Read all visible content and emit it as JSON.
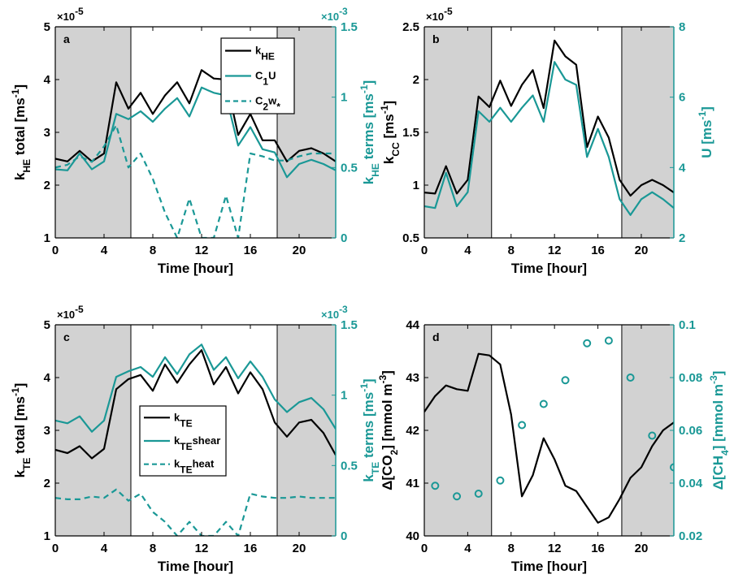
{
  "colors": {
    "black": "#000000",
    "teal": "#1a9896",
    "night": "#d2d2d2"
  },
  "panels": [
    {
      "id": "a",
      "label": "a",
      "xlabel": "Time [hour]",
      "xticks": [
        "0",
        "4",
        "8",
        "12",
        "16",
        "20"
      ],
      "left_axis": {
        "label": [
          "k",
          "HE",
          " total [ms",
          "-1",
          "]"
        ],
        "ticks": [
          "1",
          "2",
          "3",
          "4",
          "5"
        ],
        "multiplier": [
          "×10",
          "-5"
        ]
      },
      "right_axis": {
        "label": [
          "k",
          "HE",
          " terms [ms",
          "-1",
          "]"
        ],
        "ticks": [
          "0",
          "0.5",
          "1",
          "1.5"
        ],
        "multiplier": [
          "×10",
          "-3"
        ]
      },
      "legend": [
        {
          "parts": [
            "k",
            "HE"
          ],
          "style": "black-solid"
        },
        {
          "parts": [
            "C",
            "1",
            "U"
          ],
          "style": "teal-solid"
        },
        {
          "parts": [
            "C",
            "2",
            "w",
            "*"
          ],
          "style": "teal-dashed"
        }
      ]
    },
    {
      "id": "b",
      "label": "b",
      "xlabel": "Time [hour]",
      "xticks": [
        "0",
        "4",
        "8",
        "12",
        "16",
        "20"
      ],
      "left_axis": {
        "label": [
          "k",
          "CC",
          " [ms",
          "-1",
          "]"
        ],
        "ticks": [
          "0.5",
          "1",
          "1.5",
          "2",
          "2.5"
        ],
        "multiplier": [
          "×10",
          "-5"
        ]
      },
      "right_axis": {
        "label": [
          "U [ms",
          "-1",
          "]"
        ],
        "ticks": [
          "2",
          "4",
          "6",
          "8"
        ],
        "multiplier": null
      },
      "legend": []
    },
    {
      "id": "c",
      "label": "c",
      "xlabel": "Time [hour]",
      "xticks": [
        "0",
        "4",
        "8",
        "12",
        "16",
        "20"
      ],
      "left_axis": {
        "label": [
          "k",
          "TE",
          " total [ms",
          "-1",
          "]"
        ],
        "ticks": [
          "1",
          "2",
          "3",
          "4",
          "5"
        ],
        "multiplier": [
          "×10",
          "-5"
        ]
      },
      "right_axis": {
        "label": [
          "k",
          "TE",
          " terms [ms",
          "-1",
          "]"
        ],
        "ticks": [
          "0",
          "0.5",
          "1",
          "1.5"
        ],
        "multiplier": [
          "×10",
          "-3"
        ]
      },
      "legend": [
        {
          "parts": [
            "k",
            "TE"
          ],
          "style": "black-solid"
        },
        {
          "parts": [
            "k",
            "TE",
            "shear"
          ],
          "style": "teal-solid"
        },
        {
          "parts": [
            "k",
            "TE",
            "heat"
          ],
          "style": "teal-dashed"
        }
      ]
    },
    {
      "id": "d",
      "label": "d",
      "xlabel": "Time [hour]",
      "xticks": [
        "0",
        "4",
        "8",
        "12",
        "16",
        "20"
      ],
      "left_axis": {
        "label": [
          "Δ[CO",
          "2",
          "]  [mmol m",
          "-3",
          "]"
        ],
        "ticks": [
          "40",
          "41",
          "42",
          "43",
          "44"
        ],
        "multiplier": null
      },
      "right_axis": {
        "label": [
          "Δ[CH",
          "4",
          "]  [mmol m",
          "-3",
          "]"
        ],
        "ticks": [
          "0.02",
          "0.04",
          "0.06",
          "0.08",
          "0.1"
        ],
        "multiplier": null
      },
      "legend": []
    }
  ],
  "chart_data": [
    {
      "panel": "a",
      "type": "line",
      "xlabel": "Time [hour]",
      "xlim": [
        0,
        23
      ],
      "shaded_intervals": [
        [
          0,
          6.2
        ],
        [
          18.2,
          23
        ]
      ],
      "left_ylabel": "kHE total [ms-1]",
      "left_ylim": [
        1,
        5
      ],
      "left_unit_multiplier": "1e-5",
      "right_ylabel": "kHE terms [ms-1]",
      "right_ylim": [
        0,
        1.5
      ],
      "right_unit_multiplier": "1e-3",
      "x": [
        0,
        1,
        2,
        3,
        4,
        5,
        6,
        7,
        8,
        9,
        10,
        11,
        12,
        13,
        14,
        15,
        16,
        17,
        18,
        19,
        20,
        21,
        22,
        23
      ],
      "series": [
        {
          "name": "kHE",
          "axis": "left",
          "style": "black-solid",
          "values": [
            2.5,
            2.45,
            2.65,
            2.45,
            2.6,
            3.95,
            3.45,
            3.75,
            3.35,
            3.7,
            3.95,
            3.55,
            4.18,
            4.02,
            4.0,
            2.95,
            3.35,
            2.85,
            2.85,
            2.45,
            2.65,
            2.7,
            2.6,
            2.45
          ]
        },
        {
          "name": "C1U",
          "axis": "left",
          "style": "teal-solid",
          "values": [
            2.3,
            2.28,
            2.6,
            2.3,
            2.45,
            3.35,
            3.25,
            3.4,
            3.2,
            3.45,
            3.65,
            3.3,
            3.85,
            3.75,
            3.7,
            2.75,
            3.1,
            2.68,
            2.62,
            2.15,
            2.4,
            2.48,
            2.4,
            2.28
          ]
        },
        {
          "name": "C2w*",
          "axis": "right",
          "style": "teal-dashed",
          "values": [
            0.5,
            0.52,
            0.58,
            0.54,
            0.65,
            0.8,
            0.5,
            0.6,
            0.42,
            0.18,
            0.0,
            0.28,
            0.0,
            0.0,
            0.3,
            0.0,
            0.6,
            0.58,
            0.55,
            0.55,
            0.58,
            0.6,
            0.6,
            0.6
          ]
        }
      ]
    },
    {
      "panel": "b",
      "type": "line",
      "xlabel": "Time [hour]",
      "xlim": [
        0,
        23
      ],
      "shaded_intervals": [
        [
          0,
          6.2
        ],
        [
          18.2,
          23
        ]
      ],
      "left_ylabel": "kCC [ms-1]",
      "left_ylim": [
        0.5,
        2.5
      ],
      "left_unit_multiplier": "1e-5",
      "right_ylabel": "U [ms-1]",
      "right_ylim": [
        2,
        8
      ],
      "x": [
        0,
        1,
        2,
        3,
        4,
        5,
        6,
        7,
        8,
        9,
        10,
        11,
        12,
        13,
        14,
        15,
        16,
        17,
        18,
        19,
        20,
        21,
        22,
        23
      ],
      "series": [
        {
          "axis": "left",
          "style": "black-solid",
          "values": [
            0.93,
            0.92,
            1.18,
            0.92,
            1.05,
            1.84,
            1.74,
            1.99,
            1.75,
            1.95,
            2.09,
            1.73,
            2.37,
            2.22,
            2.14,
            1.36,
            1.65,
            1.45,
            1.05,
            0.9,
            1.0,
            1.05,
            1.0,
            0.93
          ]
        },
        {
          "axis": "right",
          "style": "teal-solid",
          "values": [
            2.9,
            2.85,
            3.85,
            2.9,
            3.3,
            5.6,
            5.3,
            5.7,
            5.3,
            5.7,
            6.05,
            5.3,
            7.0,
            6.5,
            6.35,
            4.3,
            5.1,
            4.3,
            3.1,
            2.65,
            3.1,
            3.3,
            3.1,
            2.85
          ]
        }
      ]
    },
    {
      "panel": "c",
      "type": "line",
      "xlabel": "Time [hour]",
      "xlim": [
        0,
        23
      ],
      "shaded_intervals": [
        [
          0,
          6.2
        ],
        [
          18.2,
          23
        ]
      ],
      "left_ylabel": "kTE total [ms-1]",
      "left_ylim": [
        1,
        5
      ],
      "left_unit_multiplier": "1e-5",
      "right_ylabel": "kTE terms [ms-1]",
      "right_ylim": [
        0,
        1.5
      ],
      "right_unit_multiplier": "1e-3",
      "x": [
        0,
        1,
        2,
        3,
        4,
        5,
        6,
        7,
        8,
        9,
        10,
        11,
        12,
        13,
        14,
        15,
        16,
        17,
        18,
        19,
        20,
        21,
        22,
        23
      ],
      "series": [
        {
          "name": "kTE",
          "axis": "left",
          "style": "black-solid",
          "values": [
            2.63,
            2.57,
            2.7,
            2.47,
            2.65,
            3.78,
            3.97,
            4.05,
            3.75,
            4.25,
            3.9,
            4.25,
            4.52,
            3.87,
            4.2,
            3.7,
            4.1,
            3.78,
            3.15,
            2.88,
            3.15,
            3.2,
            2.95,
            2.53
          ]
        },
        {
          "name": "kTEshear",
          "axis": "right",
          "style": "teal-solid",
          "values": [
            0.82,
            0.8,
            0.85,
            0.74,
            0.82,
            1.13,
            1.17,
            1.2,
            1.13,
            1.27,
            1.15,
            1.29,
            1.36,
            1.18,
            1.27,
            1.12,
            1.24,
            1.13,
            0.97,
            0.88,
            0.95,
            0.98,
            0.9,
            0.76
          ]
        },
        {
          "name": "kTEheat",
          "axis": "right",
          "style": "teal-dashed",
          "values": [
            0.27,
            0.26,
            0.26,
            0.28,
            0.27,
            0.33,
            0.25,
            0.3,
            0.17,
            0.1,
            0.0,
            0.1,
            0.0,
            0.0,
            0.1,
            0.0,
            0.3,
            0.28,
            0.27,
            0.27,
            0.28,
            0.27,
            0.27,
            0.27
          ]
        }
      ]
    },
    {
      "panel": "d",
      "type": "line",
      "xlabel": "Time [hour]",
      "xlim": [
        0,
        23
      ],
      "shaded_intervals": [
        [
          0,
          6.2
        ],
        [
          18.2,
          23
        ]
      ],
      "left_ylabel": "Δ[CO2] [mmol m-3]",
      "left_ylim": [
        40,
        44
      ],
      "right_ylabel": "Δ[CH4] [mmol m-3]",
      "right_ylim": [
        0.02,
        0.1
      ],
      "series": [
        {
          "axis": "left",
          "style": "black-solid",
          "x": [
            0,
            1,
            2,
            3,
            4,
            5,
            6,
            7,
            8,
            9,
            10,
            11,
            12,
            13,
            14,
            15,
            16,
            17,
            18,
            19,
            20,
            21,
            22,
            23
          ],
          "values": [
            42.35,
            42.65,
            42.85,
            42.78,
            42.75,
            43.45,
            43.42,
            43.25,
            42.3,
            40.75,
            41.15,
            41.85,
            41.45,
            40.95,
            40.85,
            40.55,
            40.25,
            40.35,
            40.7,
            41.1,
            41.3,
            41.7,
            42.0,
            42.15
          ]
        },
        {
          "axis": "right",
          "style": "teal-circles",
          "x": [
            1,
            3,
            5,
            7,
            9,
            11,
            13,
            15,
            17,
            19,
            21,
            23
          ],
          "values": [
            0.039,
            0.035,
            0.036,
            0.041,
            0.062,
            0.07,
            0.079,
            0.093,
            0.094,
            0.08,
            0.058,
            0.046
          ]
        }
      ]
    }
  ]
}
